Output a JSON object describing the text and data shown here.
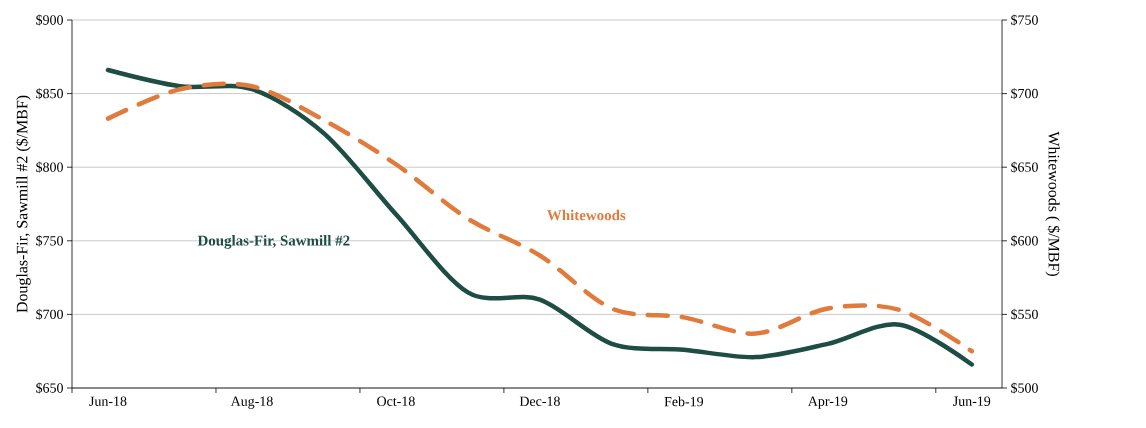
{
  "chart_data": {
    "type": "line",
    "categories": [
      "Jun-18",
      null,
      "Aug-18",
      null,
      "Oct-18",
      null,
      "Dec-18",
      null,
      "Feb-19",
      null,
      "Apr-19",
      null,
      "Jun-19"
    ],
    "series": [
      {
        "name": "Douglas-Fir, Sawmill #2",
        "color": "#1e4d44",
        "line_style": "solid",
        "axis": "y",
        "values": [
          866,
          855,
          853,
          823,
          768,
          715,
          710,
          680,
          676,
          671,
          680,
          693,
          666
        ]
      },
      {
        "name": "Whitewoods",
        "color": "#e07b3c",
        "line_style": "dashed",
        "axis": "y2",
        "values": [
          683,
          703,
          705,
          682,
          652,
          615,
          590,
          554,
          548,
          537,
          554,
          553,
          525
        ]
      }
    ],
    "ylabel": "Douglas-Fir, Sawmill #2 ($/MBF)",
    "y2label": "Whitewoods ( $/MBF)",
    "ylim": [
      650,
      900
    ],
    "yticks": [
      {
        "value": 650,
        "label": "$650"
      },
      {
        "value": 700,
        "label": "$700"
      },
      {
        "value": 750,
        "label": "$750"
      },
      {
        "value": 800,
        "label": "$800"
      },
      {
        "value": 850,
        "label": "$850"
      },
      {
        "value": 900,
        "label": "$900"
      }
    ],
    "y2lim": [
      500,
      750
    ],
    "y2ticks": [
      {
        "value": 500,
        "label": "$500"
      },
      {
        "value": 550,
        "label": "$550"
      },
      {
        "value": 600,
        "label": "$600"
      },
      {
        "value": 650,
        "label": "$650"
      },
      {
        "value": 700,
        "label": "$700"
      },
      {
        "value": 750,
        "label": "$750"
      }
    ],
    "grid": "y"
  }
}
